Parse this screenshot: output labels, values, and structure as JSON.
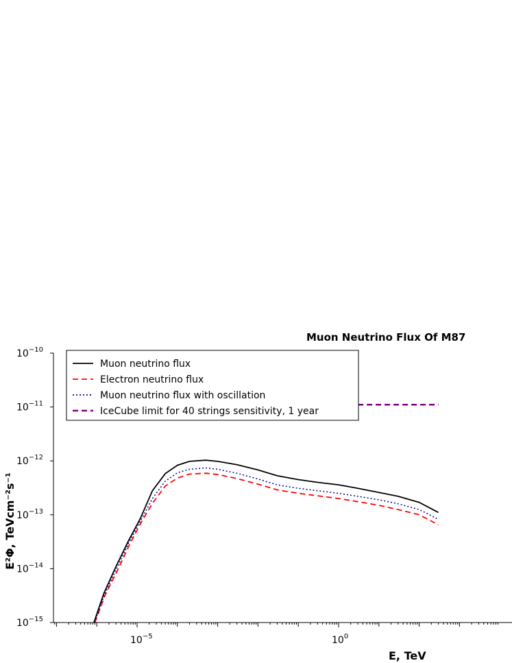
{
  "chart_data": {
    "type": "line",
    "title": "Muon Neutrino Flux Of M87",
    "xlabel": "E, TeV",
    "ylabel": "E²Φ, TeVcm⁻²s⁻¹",
    "x_scale": "log",
    "y_scale": "log",
    "xlim": [
      1e-07,
      300.0
    ],
    "ylim": [
      1e-15,
      1e-10
    ],
    "xticks": [
      {
        "value": 1e-05,
        "base": "10",
        "exp": "−5"
      },
      {
        "value": 1,
        "base": "10",
        "exp": "0"
      }
    ],
    "yticks": [
      {
        "value": 1e-10,
        "base": "10",
        "exp": "−10"
      },
      {
        "value": 1e-11,
        "base": "10",
        "exp": "−11"
      },
      {
        "value": 1e-12,
        "base": "10",
        "exp": "−12"
      },
      {
        "value": 1e-13,
        "base": "10",
        "exp": "−13"
      },
      {
        "value": 1e-14,
        "base": "10",
        "exp": "−14"
      },
      {
        "value": 1e-15,
        "base": "10",
        "exp": "−15"
      }
    ],
    "grid": false,
    "legend_position": "top-left",
    "series": [
      {
        "name": "Muon neutrino flux",
        "color": "#000000",
        "style": "solid",
        "x": [
          8.5e-07,
          1.5e-06,
          3e-06,
          6e-06,
          1.2e-05,
          2.4e-05,
          5e-05,
          0.0001,
          0.0002,
          0.0005,
          0.001,
          0.003,
          0.01,
          0.03,
          0.1,
          0.3,
          1,
          3,
          10,
          30,
          100,
          300
        ],
        "y": [
          1e-15,
          3.5e-15,
          1.1e-14,
          3.2e-14,
          8.5e-14,
          2.8e-13,
          5.8e-13,
          8.3e-13,
          9.8e-13,
          1.03e-12,
          9.8e-13,
          8.5e-13,
          6.8e-13,
          5.3e-13,
          4.5e-13,
          4e-13,
          3.6e-13,
          3.1e-13,
          2.6e-13,
          2.2e-13,
          1.7e-13,
          1.1e-13
        ]
      },
      {
        "name": "Electron neutrino flux",
        "color": "#ff0000",
        "style": "dashed",
        "x": [
          9e-07,
          1.6e-06,
          3.2e-06,
          6.5e-06,
          1.3e-05,
          2.5e-05,
          5e-05,
          0.0001,
          0.0002,
          0.0005,
          0.001,
          0.003,
          0.01,
          0.03,
          0.1,
          0.3,
          1,
          3,
          10,
          30,
          100,
          300
        ],
        "y": [
          1e-15,
          3.2e-15,
          9e-15,
          2.8e-14,
          7.5e-14,
          1.7e-13,
          3.4e-13,
          4.8e-13,
          5.7e-13,
          5.9e-13,
          5.6e-13,
          4.7e-13,
          3.7e-13,
          2.9e-13,
          2.5e-13,
          2.25e-13,
          2e-13,
          1.75e-13,
          1.5e-13,
          1.25e-13,
          1e-13,
          6.5e-14
        ]
      },
      {
        "name": "Muon neutrino flux with oscillation",
        "color": "#00008b",
        "style": "dotted",
        "x": [
          8.8e-07,
          1.55e-06,
          3.1e-06,
          6.2e-06,
          1.25e-05,
          2.4e-05,
          5e-05,
          0.0001,
          0.0002,
          0.0005,
          0.001,
          0.003,
          0.01,
          0.03,
          0.1,
          0.3,
          1,
          3,
          10,
          30,
          100,
          300
        ],
        "y": [
          1e-15,
          3.3e-15,
          1e-14,
          3e-14,
          8e-14,
          2e-13,
          4.2e-13,
          6e-13,
          7e-13,
          7.4e-13,
          7e-13,
          5.9e-13,
          4.6e-13,
          3.6e-13,
          3.1e-13,
          2.8e-13,
          2.5e-13,
          2.2e-13,
          1.9e-13,
          1.6e-13,
          1.25e-13,
          8.2e-14
        ]
      },
      {
        "name": "IceCube limit for 40 strings sensitivity, 1 year",
        "color": "#800080",
        "style": "dashed",
        "x": [
          3,
          300
        ],
        "y": [
          1.1e-11,
          1.1e-11
        ]
      }
    ]
  }
}
